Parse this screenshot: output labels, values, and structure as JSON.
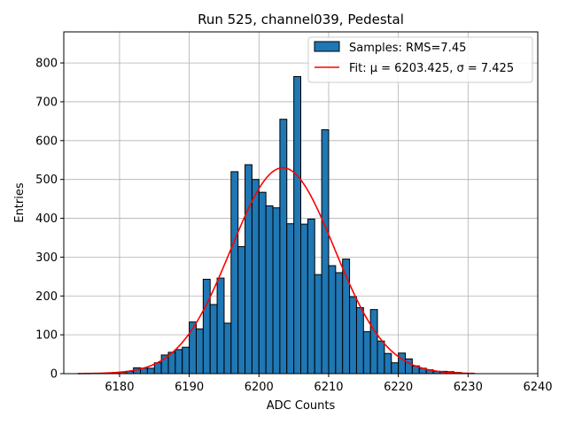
{
  "chart_data": {
    "type": "bar",
    "title": "Run 525, channel039, Pedestal",
    "xlabel": "ADC Counts",
    "ylabel": "Entries",
    "xlim": [
      6172,
      6240
    ],
    "ylim": [
      0,
      880
    ],
    "xticks": [
      6180,
      6190,
      6200,
      6210,
      6220,
      6230,
      6240
    ],
    "yticks": [
      0,
      100,
      200,
      300,
      400,
      500,
      600,
      700,
      800
    ],
    "grid": true,
    "legend_position": "top-right",
    "histogram": {
      "name": "Samples: RMS=7.45",
      "color": "#1f77b4",
      "bin_width": 1,
      "bins": [
        [
          6178,
          2
        ],
        [
          6179,
          3
        ],
        [
          6180,
          4
        ],
        [
          6181,
          6
        ],
        [
          6182,
          15
        ],
        [
          6183,
          14
        ],
        [
          6184,
          14
        ],
        [
          6185,
          28
        ],
        [
          6186,
          48
        ],
        [
          6187,
          55
        ],
        [
          6188,
          62
        ],
        [
          6189,
          68
        ],
        [
          6190,
          133
        ],
        [
          6191,
          115
        ],
        [
          6192,
          243
        ],
        [
          6193,
          178
        ],
        [
          6194,
          246
        ],
        [
          6195,
          130
        ],
        [
          6196,
          520
        ],
        [
          6197,
          327
        ],
        [
          6198,
          538
        ],
        [
          6199,
          500
        ],
        [
          6200,
          467
        ],
        [
          6201,
          432
        ],
        [
          6202,
          427
        ],
        [
          6203,
          655
        ],
        [
          6204,
          386
        ],
        [
          6205,
          765
        ],
        [
          6206,
          385
        ],
        [
          6207,
          398
        ],
        [
          6208,
          255
        ],
        [
          6209,
          628
        ],
        [
          6210,
          278
        ],
        [
          6211,
          260
        ],
        [
          6212,
          295
        ],
        [
          6213,
          198
        ],
        [
          6214,
          170
        ],
        [
          6215,
          108
        ],
        [
          6216,
          165
        ],
        [
          6217,
          84
        ],
        [
          6218,
          52
        ],
        [
          6219,
          28
        ],
        [
          6220,
          53
        ],
        [
          6221,
          38
        ],
        [
          6222,
          20
        ],
        [
          6223,
          14
        ],
        [
          6224,
          10
        ],
        [
          6225,
          6
        ],
        [
          6226,
          6
        ],
        [
          6227,
          5
        ],
        [
          6228,
          3
        ]
      ]
    },
    "fit": {
      "name": "Fit: μ = 6203.425, σ = 7.425",
      "color": "#ff0000",
      "mu": 6203.425,
      "sigma": 7.425,
      "amplitude": 530,
      "x_range": [
        6174,
        6231
      ]
    }
  }
}
